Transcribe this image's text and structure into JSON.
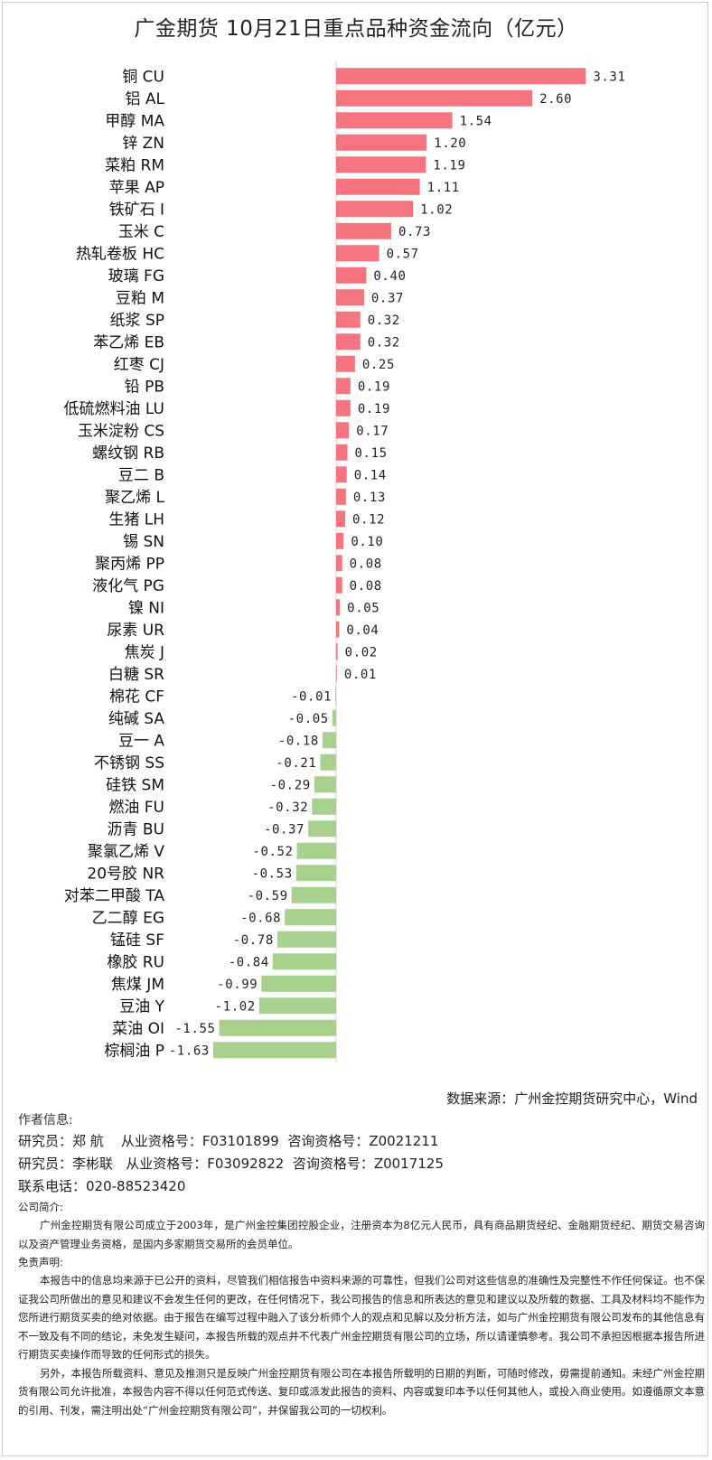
{
  "title": "广金期货 10月21日重点品种资金流向（亿元）",
  "chart_data": {
    "type": "bar",
    "orientation": "horizontal",
    "unit": "亿元",
    "colors": {
      "positive": "#f4757f",
      "negative": "#a9d18e"
    },
    "categories": [
      "铜 CU",
      "铝 AL",
      "甲醇 MA",
      "锌 ZN",
      "菜粕 RM",
      "苹果 AP",
      "铁矿石 I",
      "玉米 C",
      "热轧卷板 HC",
      "玻璃 FG",
      "豆粕 M",
      "纸浆 SP",
      "苯乙烯 EB",
      "红枣 CJ",
      "铅 PB",
      "低硫燃料油 LU",
      "玉米淀粉 CS",
      "螺纹钢 RB",
      "豆二 B",
      "聚乙烯 L",
      "生猪 LH",
      "锡 SN",
      "聚丙烯 PP",
      "液化气 PG",
      "镍 NI",
      "尿素 UR",
      "焦炭 J",
      "白糖 SR",
      "棉花 CF",
      "纯碱  SA",
      "豆一 A",
      "不锈钢 SS",
      "硅铁 SM",
      "燃油 FU",
      "沥青 BU",
      "聚氯乙烯 V",
      "20号胶 NR",
      "对苯二甲酸 TA",
      "乙二醇 EG",
      "锰硅 SF",
      "橡胶 RU",
      "焦煤 JM",
      "豆油 Y",
      "菜油 OI",
      "棕榈油 P"
    ],
    "values": [
      3.31,
      2.6,
      1.54,
      1.2,
      1.19,
      1.11,
      1.02,
      0.73,
      0.57,
      0.4,
      0.37,
      0.32,
      0.32,
      0.25,
      0.19,
      0.19,
      0.17,
      0.15,
      0.14,
      0.13,
      0.12,
      0.1,
      0.08,
      0.08,
      0.05,
      0.04,
      0.02,
      0.01,
      -0.01,
      -0.05,
      -0.18,
      -0.21,
      -0.29,
      -0.32,
      -0.37,
      -0.52,
      -0.53,
      -0.59,
      -0.68,
      -0.78,
      -0.84,
      -0.99,
      -1.02,
      -1.55,
      -1.63
    ],
    "value_labels": [
      "3.31",
      "2.60",
      "1.54",
      "1.20",
      "1.19",
      "1.11",
      "1.02",
      "0.73",
      "0.57",
      "0.40",
      "0.37",
      "0.32",
      "0.32",
      "0.25",
      "0.19",
      "0.19",
      "0.17",
      "0.15",
      "0.14",
      "0.13",
      "0.12",
      "0.10",
      "0.08",
      "0.08",
      "0.05",
      "0.04",
      "0.02",
      "0.01",
      "-0.01",
      "-0.05",
      "-0.18",
      "-0.21",
      "-0.29",
      "-0.32",
      "-0.37",
      "-0.52",
      "-0.53",
      "-0.59",
      "-0.68",
      "-0.78",
      "-0.84",
      "-0.99",
      "-1.02",
      "-1.55",
      "-1.63"
    ]
  },
  "source": "数据来源：广州金控期货研究中心，Wind",
  "author_header": "作者信息:",
  "researchers": [
    "研究员：郑 航    从业资格号：F03101899  咨询资格号：Z0021211",
    "研究员：李彬联   从业资格号：F03092822  咨询资格号：Z0017125"
  ],
  "phone": "联系电话：020-88523420",
  "company_header": "公司简介:",
  "company_text": "广州金控期货有限公司成立于2003年，是广州金控集团控股企业，注册资本为8亿元人民币，具有商品期货经纪、金融期货经纪、期货交易咨询以及资产管理业务资格，是国内多家期货交易所的会员单位。",
  "disclaimer_header": "免责声明:",
  "disclaimer_p1": "本报告中的信息均来源于已公开的资料，尽管我们相信报告中资料来源的可靠性，但我们公司对这些信息的准确性及完整性不作任何保证。也不保证我公司所做出的意见和建议不会发生任何的更改，在任何情况下，我公司报告的信息和所表达的意见和建议以及所载的数据、工具及材料均不能作为您所进行期货买卖的绝对依据。由于报告在编写过程中融入了该分析师个人的观点和见解以及分析方法，如与广州金控期货有限公司发布的其他信息有不一致及有不同的结论，未免发生疑问，本报告所载的观点并不代表广州金控期货有限公司的立场，所以请谨慎参考。我公司不承担因根据本报告所进行期货买卖操作而导致的任何形式的损失。",
  "disclaimer_p2": "另外，本报告所载资料、意见及推测只是反映广州金控期货有限公司在本报告所载明的日期的判断，可随时修改，毋需提前通知。未经广州金控期货有限公司允许批准，本报告内容不得以任何范式传送、复印或派发此报告的资料、内容或复印本予以任何其他人，或投入商业使用。如遵循原文本意的引用、刊发，需注明出处“广州金控期货有限公司”，并保留我公司的一切权利。"
}
